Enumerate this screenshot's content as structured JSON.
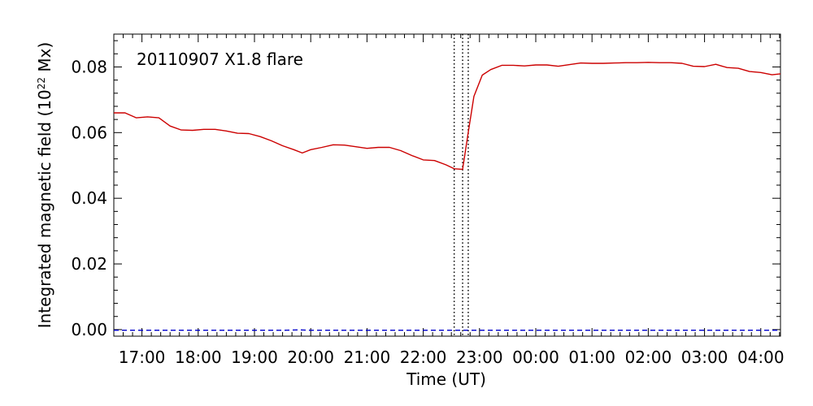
{
  "chart_data": {
    "type": "line",
    "title": "20110907 X1.8 flare",
    "xlabel": "Time (UT)",
    "ylabel_main": "Integrated magnetic field (10",
    "ylabel_exp": "22",
    "ylabel_unit": " Mx)",
    "ylim": [
      -0.002,
      0.09
    ],
    "y_ticks": [
      0.0,
      0.02,
      0.04,
      0.06,
      0.08
    ],
    "y_tick_labels": [
      "0.00",
      "0.02",
      "0.04",
      "0.06",
      "0.08"
    ],
    "x_range_hours": [
      16.5,
      28.35
    ],
    "x_ticks": [
      17,
      18,
      19,
      20,
      21,
      22,
      23,
      24,
      25,
      26,
      27,
      28
    ],
    "x_tick_labels": [
      "17:00",
      "18:00",
      "19:00",
      "20:00",
      "21:00",
      "22:00",
      "23:00",
      "00:00",
      "01:00",
      "02:00",
      "03:00",
      "04:00"
    ],
    "grid": false,
    "colors": {
      "positive": "#cc0000",
      "negative": "#0000cc",
      "axis": "#000000"
    },
    "vertical_markers": [
      22.55,
      22.7,
      22.8
    ],
    "series": [
      {
        "style": "solid",
        "color": "#cc0000",
        "x": [
          16.5,
          16.7,
          16.9,
          17.1,
          17.3,
          17.5,
          17.7,
          17.9,
          18.1,
          18.3,
          18.5,
          18.7,
          18.9,
          19.1,
          19.3,
          19.5,
          19.7,
          19.85,
          20.0,
          20.2,
          20.4,
          20.6,
          20.8,
          21.0,
          21.2,
          21.4,
          21.6,
          21.8,
          22.0,
          22.2,
          22.4,
          22.55,
          22.7,
          22.8,
          22.9,
          23.05,
          23.2,
          23.4,
          23.6,
          23.8,
          24.0,
          24.2,
          24.4,
          24.6,
          24.8,
          25.0,
          25.2,
          25.4,
          25.6,
          25.8,
          26.0,
          26.2,
          26.4,
          26.6,
          26.8,
          27.0,
          27.2,
          27.4,
          27.6,
          27.8,
          28.0,
          28.2,
          28.35
        ],
        "y": [
          0.066,
          0.066,
          0.0645,
          0.0648,
          0.0645,
          0.062,
          0.0608,
          0.0607,
          0.061,
          0.061,
          0.0605,
          0.0598,
          0.0597,
          0.0588,
          0.0575,
          0.056,
          0.0548,
          0.0538,
          0.0548,
          0.0555,
          0.0563,
          0.0562,
          0.0557,
          0.0552,
          0.0555,
          0.0555,
          0.0545,
          0.053,
          0.0517,
          0.0515,
          0.0502,
          0.049,
          0.0488,
          0.06,
          0.071,
          0.0775,
          0.0792,
          0.0805,
          0.0805,
          0.0803,
          0.0806,
          0.0806,
          0.0802,
          0.0807,
          0.0812,
          0.0811,
          0.0811,
          0.0812,
          0.0813,
          0.0813,
          0.0814,
          0.0813,
          0.0813,
          0.0811,
          0.0802,
          0.0801,
          0.0808,
          0.0798,
          0.0796,
          0.0786,
          0.0783,
          0.0776,
          0.0779
        ]
      },
      {
        "style": "dashed",
        "color": "#0000cc",
        "x": [
          16.5,
          18.0,
          19.5,
          19.8,
          20.0,
          21.5,
          23.0,
          24.5,
          26.0,
          27.5,
          28.35
        ],
        "y": [
          -0.0002,
          -0.0002,
          -0.0002,
          -0.0001,
          -0.0002,
          -0.0002,
          -0.0002,
          -0.0002,
          -0.0002,
          -0.0002,
          -0.0002
        ]
      }
    ]
  }
}
